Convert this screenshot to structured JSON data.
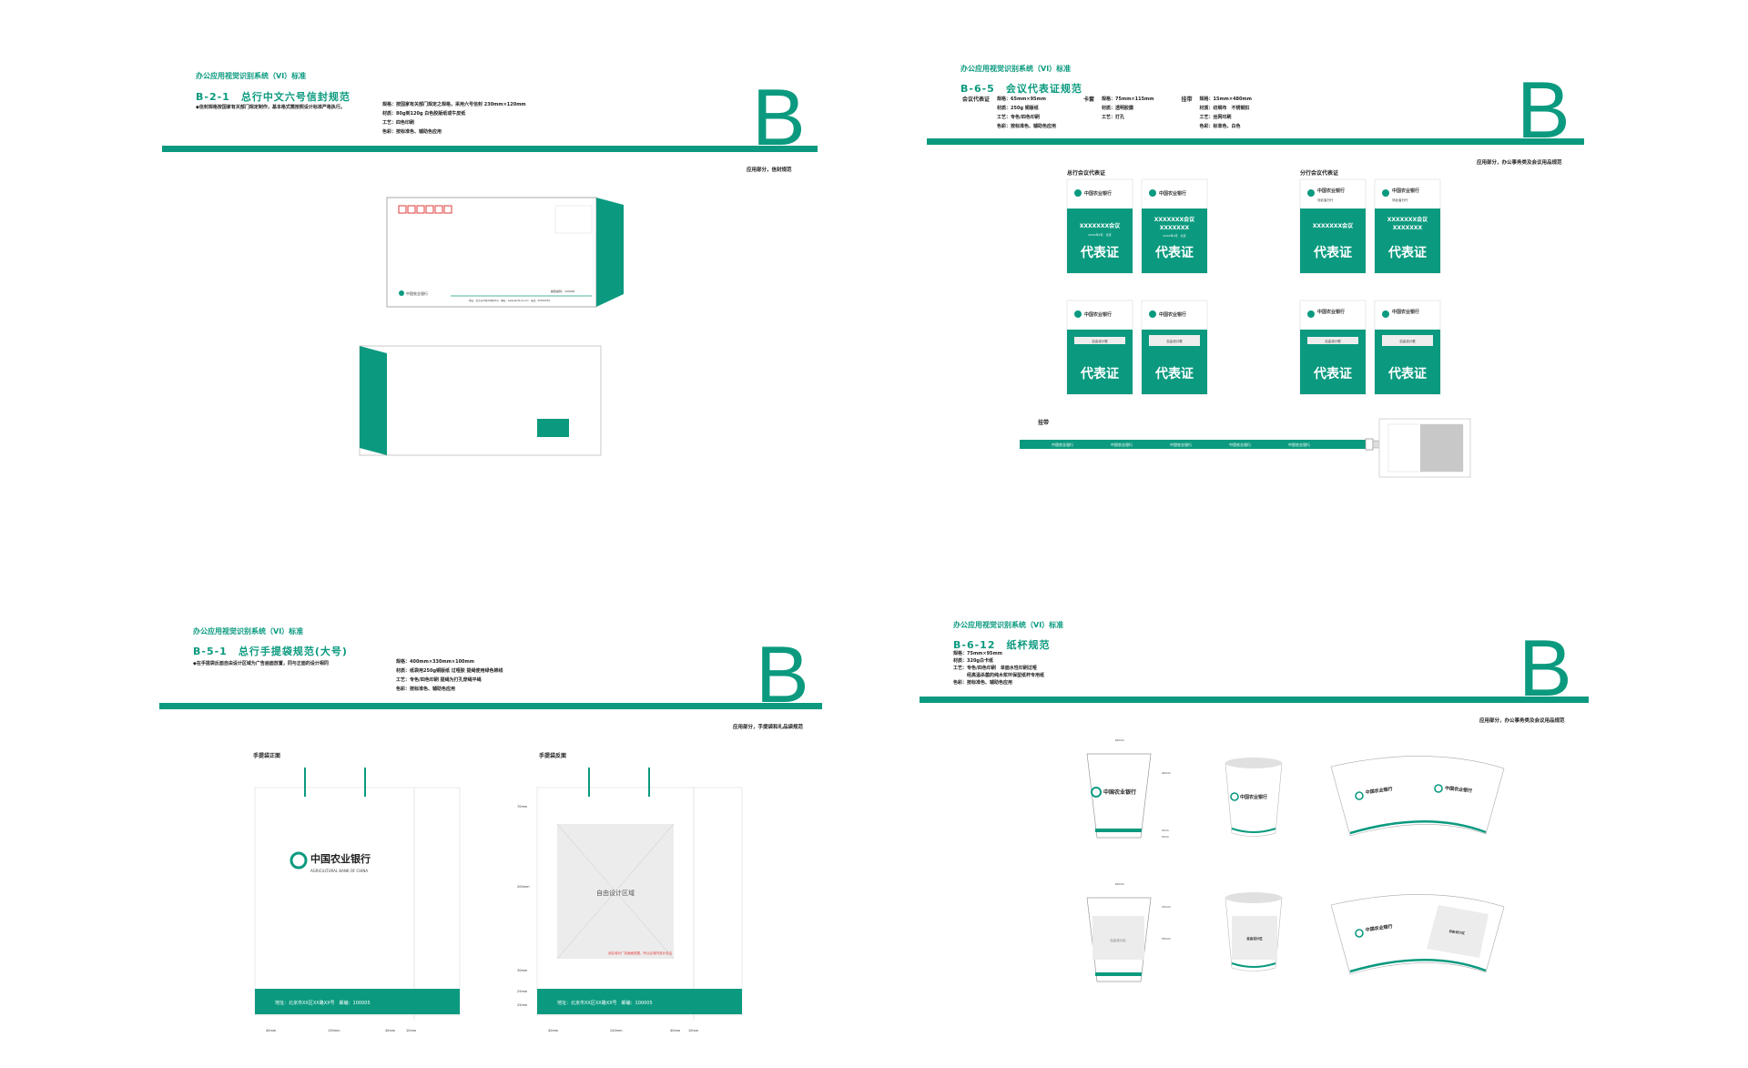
{
  "system_title": "办公应用视觉识别系统（VI）标准",
  "brand_letter": "B",
  "colors": {
    "brand_green": "#0b9a7f",
    "stamp_red": "#e23b3b",
    "area_gray": "#ececec"
  },
  "envelope": {
    "code_title": "B-2-1　总行中文六号信封规范",
    "note": "◆信封规格按国家有关部门规定制作，基本格式需按照设计标准严格执行。",
    "specs": [
      "规格：按国家有关部门规定之规格，采用六号信封 230mm×120mm",
      "材质：80g到120g 白色胶版纸或牛皮纸",
      "工艺：四色印刷",
      "色彩：按标准色、辅助色应用"
    ],
    "section": "应用部分，信封规范",
    "logo_text": "中国农业银行",
    "postcode_label": "邮政编码：100005",
    "address_line": "地址：北京市XX区XX路XX号　网址：www.abchina.com　电话：XXXXXXXX"
  },
  "badge": {
    "code_title": "B-6-5　会议代表证规范",
    "groups": [
      {
        "name": "会议代表证",
        "specs": [
          "规格：65mm×95mm",
          "材质：250g 铜版纸",
          "工艺：专色/四色印刷",
          "色彩：按标准色、辅助色应用"
        ]
      },
      {
        "name": "卡套",
        "specs": [
          "规格：75mm×115mm",
          "材质：透明胶膜",
          "工艺：打孔"
        ]
      },
      {
        "name": "挂带",
        "specs": [
          "规格：15mm×480mm",
          "材质：纺绸布　不锈钢扣",
          "工艺：丝网印刷",
          "色彩：标准色、白色"
        ]
      }
    ],
    "section": "应用部分，办公事务类及会议用品规范",
    "head_office_label": "总行会议代表证",
    "branch_label": "分行会议代表证",
    "lanyard_label": "挂带",
    "logo_text": "中国农业银行",
    "branch_name": "河北省分行",
    "meeting_name": "XXXXXXX会议",
    "meeting_name_2": "XXXXXXX",
    "date_line": "XXXX年X月　北京",
    "badge_title": "代表证",
    "photo_label": "自由设计框"
  },
  "bag": {
    "code_title": "B-5-1　总行手提袋规范(大号)",
    "note": "◆在手提袋反面自由设计区域为广告画面放置，同与正面的设计相同",
    "specs": [
      "规格：400mm×330mm×100mm",
      "材质：纸袋用250g铜版纸 过哑胶 提绳使用绿色棉线",
      "工艺：专色/四色印刷 提绳为打孔穿绳平绳",
      "色彩：按标准色、辅助色应用"
    ],
    "section": "应用部分，手提袋和礼品袋规范",
    "front_label": "手提袋正面",
    "back_label": "手提袋反面",
    "logo_text": "中国农业银行",
    "logo_en": "AGRICULTURAL BANK OF CHINA",
    "address": "地址：北京市XX区XX路XX号　邮编：100005",
    "free_area": "自由设计区域",
    "free_note": "该区域为广告画面放置，所以区域内设计自由",
    "dims_front": [
      "40mm",
      "130mm",
      "40mm",
      "10mm"
    ],
    "dims_back": [
      "40mm",
      "240mm",
      "40mm",
      "10mm"
    ],
    "dims_side": [
      "70mm",
      "200mm",
      "30mm",
      "25mm",
      "25mm"
    ]
  },
  "cup": {
    "code_title": "B-6-12　纸杯规范",
    "specs": [
      "规格：75mm×95mm",
      "材质：320g白卡纸",
      "工艺：专色/四色印刷　单面水性印刷过哑",
      "　　　经高温杀菌的纯木浆环保型纸杯专用纸",
      "色彩：按标准色、辅助色应用"
    ],
    "section": "应用部分，办公事务类及会议用品规范",
    "logo_text": "中国农业银行",
    "free_area": "自由设计区",
    "dims": [
      "60mm",
      "40mm",
      "4mm",
      "5mm",
      "15mm",
      "55mm"
    ]
  }
}
